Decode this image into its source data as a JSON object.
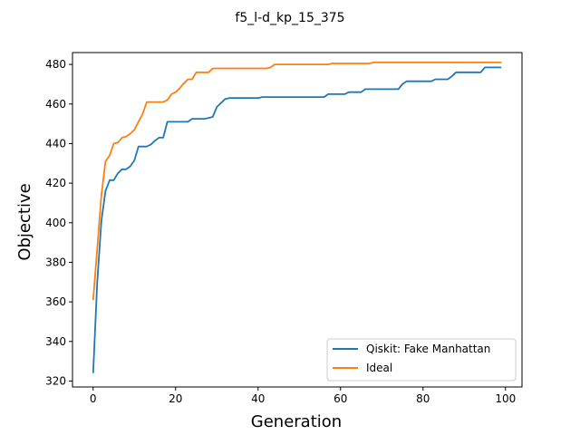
{
  "chart_data": {
    "type": "line",
    "title": "f5_l-d_kp_15_375",
    "xlabel": "Generation",
    "ylabel": "Objective",
    "xlim": [
      -5,
      104
    ],
    "ylim": [
      317,
      486
    ],
    "xticks": [
      0,
      20,
      40,
      60,
      80,
      100
    ],
    "yticks": [
      320,
      340,
      360,
      380,
      400,
      420,
      440,
      460,
      480
    ],
    "grid": false,
    "legend_position": "lower-right",
    "series": [
      {
        "name": "Qiskit: Fake Manhattan",
        "color": "#1f77b4",
        "points": [
          [
            0,
            324
          ],
          [
            1,
            370
          ],
          [
            2,
            401
          ],
          [
            3,
            416
          ],
          [
            4,
            421.5
          ],
          [
            5,
            421.5
          ],
          [
            6,
            425
          ],
          [
            7,
            427
          ],
          [
            8,
            427
          ],
          [
            9,
            428.5
          ],
          [
            10,
            431.5
          ],
          [
            11,
            438.5
          ],
          [
            12,
            438.5
          ],
          [
            13,
            438.5
          ],
          [
            14,
            439.5
          ],
          [
            15,
            441.5
          ],
          [
            16,
            443
          ],
          [
            17,
            443
          ],
          [
            18,
            451
          ],
          [
            19,
            451
          ],
          [
            20,
            451
          ],
          [
            21,
            451
          ],
          [
            22,
            451
          ],
          [
            23,
            451
          ],
          [
            24,
            452.5
          ],
          [
            25,
            452.5
          ],
          [
            26,
            452.5
          ],
          [
            27,
            452.5
          ],
          [
            28,
            453
          ],
          [
            29,
            453.5
          ],
          [
            30,
            458.5
          ],
          [
            31,
            460.5
          ],
          [
            32,
            462.5
          ],
          [
            33,
            463
          ],
          [
            40,
            463
          ],
          [
            41,
            463.5
          ],
          [
            55,
            463.5
          ],
          [
            56,
            463.5
          ],
          [
            57,
            465
          ],
          [
            61,
            465
          ],
          [
            62,
            466
          ],
          [
            65,
            466
          ],
          [
            66,
            467.5
          ],
          [
            74,
            467.5
          ],
          [
            75,
            470
          ],
          [
            76,
            471.5
          ],
          [
            82,
            471.5
          ],
          [
            83,
            472.5
          ],
          [
            86,
            472.5
          ],
          [
            87,
            474
          ],
          [
            88,
            476
          ],
          [
            94,
            476
          ],
          [
            95,
            478.5
          ],
          [
            99,
            478.5
          ]
        ]
      },
      {
        "name": "Ideal",
        "color": "#ff7f0e",
        "points": [
          [
            0,
            361
          ],
          [
            1,
            387
          ],
          [
            2,
            414
          ],
          [
            3,
            431
          ],
          [
            4,
            434
          ],
          [
            5,
            440
          ],
          [
            6,
            440.5
          ],
          [
            7,
            443
          ],
          [
            8,
            443.5
          ],
          [
            9,
            445
          ],
          [
            10,
            447
          ],
          [
            11,
            451
          ],
          [
            12,
            455
          ],
          [
            13,
            461
          ],
          [
            14,
            461
          ],
          [
            17,
            461
          ],
          [
            18,
            462
          ],
          [
            19,
            465
          ],
          [
            20,
            466
          ],
          [
            21,
            468
          ],
          [
            22,
            470.5
          ],
          [
            23,
            472.5
          ],
          [
            24,
            472.5
          ],
          [
            25,
            476
          ],
          [
            28,
            476
          ],
          [
            29,
            478
          ],
          [
            42,
            478
          ],
          [
            43,
            478.5
          ],
          [
            44,
            480
          ],
          [
            57,
            480
          ],
          [
            58,
            480.5
          ],
          [
            67,
            480.5
          ],
          [
            68,
            481
          ],
          [
            99,
            481
          ]
        ]
      }
    ]
  }
}
